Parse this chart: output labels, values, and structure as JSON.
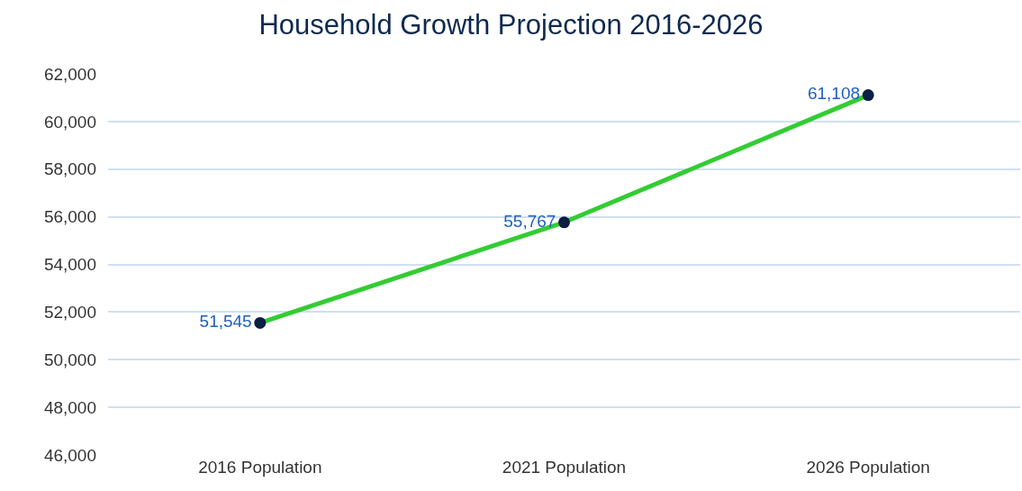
{
  "chart_data": {
    "type": "line",
    "title": "Household Growth Projection 2016-2026",
    "categories": [
      "2016 Population",
      "2021 Population",
      "2026 Population"
    ],
    "series": [
      {
        "color": "#33cc33",
        "values": [
          51545,
          55767,
          61108
        ],
        "value_labels": [
          "51,545",
          "55,767",
          "61,108"
        ]
      }
    ],
    "ylim": [
      46000,
      62000
    ],
    "yticks": [
      {
        "value": 46000,
        "label": "46,000"
      },
      {
        "value": 48000,
        "label": "48,000"
      },
      {
        "value": 50000,
        "label": "50,000"
      },
      {
        "value": 52000,
        "label": "52,000"
      },
      {
        "value": 54000,
        "label": "54,000"
      },
      {
        "value": 56000,
        "label": "56,000"
      },
      {
        "value": 58000,
        "label": "58,000"
      },
      {
        "value": 60000,
        "label": "60,000"
      },
      {
        "value": 62000,
        "label": "62,000"
      }
    ],
    "grid": "y",
    "legend": false,
    "marker": "circle",
    "line_style": "solid"
  }
}
